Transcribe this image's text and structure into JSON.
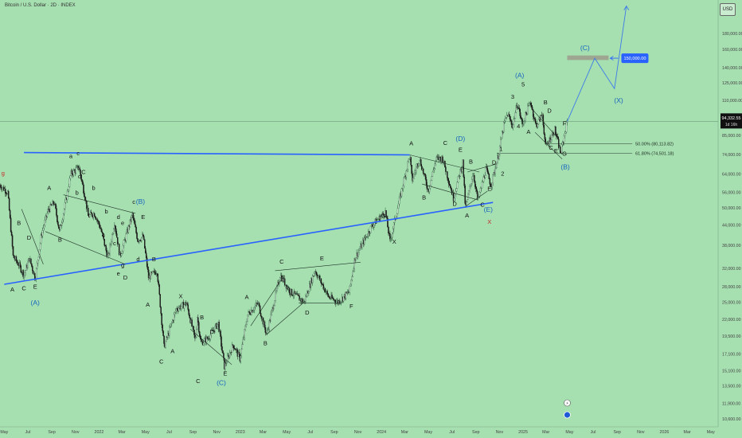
{
  "header": {
    "title": "Bitcoin / U.S. Dollar · 2D · INDEX",
    "currency": "USD"
  },
  "colors": {
    "background": "#a6dfb0",
    "up": "#2a5a3a",
    "down": "#1a1a1a",
    "trend": "#2962ff",
    "wave_label": "#111111",
    "blue_label": "#1565c0",
    "red_label": "#c62828",
    "zone": "#9c9c8c"
  },
  "chart_data": {
    "type": "candlestick",
    "scale": "log",
    "ylim": [
      10000,
      230000
    ],
    "xlim": [
      "2021-04-20",
      "2026-05-20"
    ],
    "price_ticks": [
      10600,
      11900,
      13500,
      15100,
      17100,
      19500,
      22000,
      25000,
      28000,
      32000,
      38000,
      44000,
      50000,
      56000,
      64000,
      74000,
      85000,
      110000,
      125000,
      140000,
      160000,
      180000
    ],
    "price_tick_labels": [
      "10,600.00",
      "11,900.00",
      "13,500.00",
      "15,100.00",
      "17,100.00",
      "19,500.00",
      "22,000.00",
      "25,000.00",
      "28,000.00",
      "32,000.00",
      "38,000.00",
      "44,000.00",
      "50,000.00",
      "56,000.00",
      "64,000.00",
      "74,000.00",
      "85,000.00",
      "110,000.00",
      "125,000.00",
      "140,000.00",
      "160,000.00",
      "180,000.00"
    ],
    "time_labels": [
      {
        "date": "2021-05-01",
        "label": "May"
      },
      {
        "date": "2021-07-01",
        "label": "Jul"
      },
      {
        "date": "2021-09-01",
        "label": "Sep"
      },
      {
        "date": "2021-11-01",
        "label": "Nov"
      },
      {
        "date": "2022-01-01",
        "label": "2022"
      },
      {
        "date": "2022-03-01",
        "label": "Mar"
      },
      {
        "date": "2022-05-01",
        "label": "May"
      },
      {
        "date": "2022-07-01",
        "label": "Jul"
      },
      {
        "date": "2022-09-01",
        "label": "Sep"
      },
      {
        "date": "2022-11-01",
        "label": "Nov"
      },
      {
        "date": "2023-01-01",
        "label": "2023"
      },
      {
        "date": "2023-03-01",
        "label": "Mar"
      },
      {
        "date": "2023-05-01",
        "label": "May"
      },
      {
        "date": "2023-07-01",
        "label": "Jul"
      },
      {
        "date": "2023-09-01",
        "label": "Sep"
      },
      {
        "date": "2023-11-01",
        "label": "Nov"
      },
      {
        "date": "2024-01-01",
        "label": "2024"
      },
      {
        "date": "2024-03-01",
        "label": "Mar"
      },
      {
        "date": "2024-05-01",
        "label": "May"
      },
      {
        "date": "2024-07-01",
        "label": "Jul"
      },
      {
        "date": "2024-09-01",
        "label": "Sep"
      },
      {
        "date": "2024-11-01",
        "label": "Nov"
      },
      {
        "date": "2025-01-01",
        "label": "2025"
      },
      {
        "date": "2025-03-01",
        "label": "Mar"
      },
      {
        "date": "2025-05-01",
        "label": "May"
      },
      {
        "date": "2025-07-01",
        "label": "Jul"
      },
      {
        "date": "2025-09-01",
        "label": "Sep"
      },
      {
        "date": "2025-11-01",
        "label": "Nov"
      },
      {
        "date": "2026-01-01",
        "label": "2026"
      },
      {
        "date": "2026-03-01",
        "label": "Mar"
      },
      {
        "date": "2026-05-01",
        "label": "May"
      }
    ],
    "price_path": [
      [
        "2021-04-20",
        59000
      ],
      [
        "2021-05-10",
        56000
      ],
      [
        "2021-05-24",
        35000
      ],
      [
        "2021-06-07",
        33000
      ],
      [
        "2021-06-21",
        30500
      ],
      [
        "2021-07-05",
        34500
      ],
      [
        "2021-07-20",
        29800
      ],
      [
        "2021-08-05",
        41000
      ],
      [
        "2021-08-22",
        49000
      ],
      [
        "2021-09-07",
        52000
      ],
      [
        "2021-09-21",
        42000
      ],
      [
        "2021-10-05",
        51000
      ],
      [
        "2021-10-20",
        64000
      ],
      [
        "2021-11-10",
        67500
      ],
      [
        "2021-11-26",
        54000
      ],
      [
        "2021-12-04",
        47000
      ],
      [
        "2021-12-20",
        48000
      ],
      [
        "2022-01-05",
        43000
      ],
      [
        "2022-01-24",
        34500
      ],
      [
        "2022-02-10",
        45000
      ],
      [
        "2022-02-24",
        35000
      ],
      [
        "2022-03-28",
        47500
      ],
      [
        "2022-04-11",
        39500
      ],
      [
        "2022-04-25",
        40500
      ],
      [
        "2022-05-09",
        30000
      ],
      [
        "2022-05-31",
        31500
      ],
      [
        "2022-06-18",
        18000
      ],
      [
        "2022-07-20",
        23800
      ],
      [
        "2022-08-15",
        24800
      ],
      [
        "2022-09-07",
        18800
      ],
      [
        "2022-09-12",
        22500
      ],
      [
        "2022-09-21",
        18500
      ],
      [
        "2022-10-10",
        19200
      ],
      [
        "2022-11-05",
        21400
      ],
      [
        "2022-11-21",
        15600
      ],
      [
        "2022-12-14",
        18300
      ],
      [
        "2022-12-31",
        16500
      ],
      [
        "2023-01-20",
        22800
      ],
      [
        "2023-02-16",
        24800
      ],
      [
        "2023-03-10",
        19700
      ],
      [
        "2023-04-14",
        30500
      ],
      [
        "2023-05-10",
        27000
      ],
      [
        "2023-06-15",
        25000
      ],
      [
        "2023-07-13",
        31600
      ],
      [
        "2023-08-17",
        26000
      ],
      [
        "2023-09-11",
        25000
      ],
      [
        "2023-10-10",
        27000
      ],
      [
        "2023-10-24",
        34500
      ],
      [
        "2023-12-08",
        44000
      ],
      [
        "2024-01-11",
        48500
      ],
      [
        "2024-01-23",
        39000
      ],
      [
        "2024-02-15",
        52000
      ],
      [
        "2024-03-14",
        73700
      ],
      [
        "2024-03-20",
        61000
      ],
      [
        "2024-04-08",
        72000
      ],
      [
        "2024-05-01",
        56600
      ],
      [
        "2024-05-21",
        71500
      ],
      [
        "2024-06-07",
        71900
      ],
      [
        "2024-07-05",
        53700
      ],
      [
        "2024-07-29",
        70000
      ],
      [
        "2024-08-05",
        49500
      ],
      [
        "2024-08-25",
        64900
      ],
      [
        "2024-09-06",
        52500
      ],
      [
        "2024-09-27",
        66500
      ],
      [
        "2024-10-10",
        58900
      ],
      [
        "2024-10-29",
        73500
      ],
      [
        "2024-11-13",
        93000
      ],
      [
        "2024-11-22",
        99500
      ],
      [
        "2024-12-05",
        91000
      ],
      [
        "2024-12-17",
        108000
      ],
      [
        "2024-12-30",
        92000
      ],
      [
        "2025-01-20",
        109500
      ],
      [
        "2025-02-03",
        91200
      ],
      [
        "2025-02-20",
        99000
      ],
      [
        "2025-02-28",
        78000
      ],
      [
        "2025-03-24",
        88700
      ],
      [
        "2025-04-08",
        74500
      ],
      [
        "2025-04-25",
        94300
      ]
    ],
    "last_price": 94332.55,
    "last_price_label": "94,332.55",
    "candle_timer": "1d 16h",
    "target_price_label": "150,000.00",
    "target_zone": {
      "x0": "2025-04-25",
      "x1": "2025-08-10",
      "y0": 148000,
      "y1": 153000
    },
    "fib_levels": [
      {
        "label": "50.00% (80,113.82)",
        "price": 80113.82,
        "x0": "2025-03-01",
        "x1": "2025-10-10"
      },
      {
        "label": "61.80% (74,501.18)",
        "price": 74501.18,
        "x0": "2024-10-25",
        "x1": "2025-10-10"
      }
    ],
    "trendlines": [
      {
        "pts": [
          [
            "2021-06-21",
            75000
          ],
          [
            "2024-03-14",
            73700
          ]
        ],
        "style": "trend"
      },
      {
        "pts": [
          [
            "2021-05-01",
            28500
          ],
          [
            "2024-10-15",
            52000
          ]
        ],
        "style": "trend"
      },
      {
        "pts": [
          [
            "2025-04-25",
            94300
          ],
          [
            "2025-07-05",
            150000
          ],
          [
            "2025-08-25",
            120000
          ],
          [
            "2025-09-25",
            220000
          ]
        ],
        "style": "projection"
      },
      {
        "pts": [
          [
            "2021-06-15",
            49500
          ],
          [
            "2021-08-10",
            33000
          ]
        ],
        "style": "thin"
      },
      {
        "pts": [
          [
            "2021-10-01",
            55000
          ],
          [
            "2022-04-05",
            48000
          ]
        ],
        "style": "thin"
      },
      {
        "pts": [
          [
            "2021-08-15",
            42000
          ],
          [
            "2022-03-10",
            33000
          ]
        ],
        "style": "thin"
      },
      {
        "pts": [
          [
            "2022-08-25",
            20500
          ],
          [
            "2022-12-10",
            15800
          ]
        ],
        "style": "thin"
      },
      {
        "pts": [
          [
            "2023-01-28",
            21000
          ],
          [
            "2023-04-25",
            30500
          ]
        ],
        "style": "thin"
      },
      {
        "pts": [
          [
            "2023-04-01",
            31500
          ],
          [
            "2023-11-08",
            33500
          ]
        ],
        "style": "thin"
      },
      {
        "pts": [
          [
            "2023-06-01",
            24800
          ],
          [
            "2023-09-20",
            24800
          ]
        ],
        "style": "thin"
      },
      {
        "pts": [
          [
            "2023-03-10",
            19700
          ],
          [
            "2023-06-15",
            25000
          ]
        ],
        "style": "thin"
      },
      {
        "pts": [
          [
            "2024-03-14",
            73700
          ],
          [
            "2024-09-10",
            65000
          ]
        ],
        "style": "thin"
      },
      {
        "pts": [
          [
            "2024-04-15",
            59500
          ],
          [
            "2024-09-05",
            53000
          ]
        ],
        "style": "thin"
      },
      {
        "pts": [
          [
            "2024-08-05",
            50500
          ],
          [
            "2024-10-01",
            56500
          ]
        ],
        "style": "thin"
      },
      {
        "pts": [
          [
            "2024-08-10",
            65000
          ],
          [
            "2024-10-25",
            69000
          ]
        ],
        "style": "thin"
      },
      {
        "pts": [
          [
            "2025-01-25",
            103000
          ],
          [
            "2025-04-02",
            83000
          ]
        ],
        "style": "thin"
      },
      {
        "pts": [
          [
            "2025-02-01",
            87000
          ],
          [
            "2025-04-12",
            71500
          ]
        ],
        "style": "thin"
      }
    ],
    "wave_labels": [
      {
        "t": "g",
        "d": "2021-04-28",
        "p": 63500,
        "c": "red"
      },
      {
        "t": "A",
        "d": "2021-05-22",
        "p": 27000,
        "c": "dark"
      },
      {
        "t": "B",
        "d": "2021-06-08",
        "p": 44000,
        "c": "dark"
      },
      {
        "t": "C",
        "d": "2021-06-21",
        "p": 27300,
        "c": "dark"
      },
      {
        "t": "D",
        "d": "2021-07-04",
        "p": 39500,
        "c": "dark"
      },
      {
        "t": "E",
        "d": "2021-07-20",
        "p": 27600,
        "c": "dark"
      },
      {
        "t": "(A)",
        "d": "2021-07-20",
        "p": 24500,
        "c": "blue"
      },
      {
        "t": "A",
        "d": "2021-08-25",
        "p": 57000,
        "c": "dark"
      },
      {
        "t": "B",
        "d": "2021-09-22",
        "p": 39000,
        "c": "dark"
      },
      {
        "t": "a",
        "d": "2021-10-20",
        "p": 72000,
        "c": "dark"
      },
      {
        "t": "c",
        "d": "2021-11-08",
        "p": 73500,
        "c": "dark"
      },
      {
        "t": "C",
        "d": "2021-11-22",
        "p": 64000,
        "c": "dark"
      },
      {
        "t": "b",
        "d": "2021-11-05",
        "p": 55000,
        "c": "dark"
      },
      {
        "t": "d",
        "d": "2021-11-12",
        "p": 62000,
        "c": "dark"
      },
      {
        "t": "b",
        "d": "2021-12-18",
        "p": 57000,
        "c": "dark"
      },
      {
        "t": "b",
        "d": "2022-01-20",
        "p": 48000,
        "c": "dark"
      },
      {
        "t": "a",
        "d": "2022-01-12",
        "p": 40500,
        "c": "dark"
      },
      {
        "t": "c",
        "d": "2022-02-10",
        "p": 38000,
        "c": "dark"
      },
      {
        "t": "d",
        "d": "2022-02-20",
        "p": 46000,
        "c": "dark"
      },
      {
        "t": "e",
        "d": "2022-03-03",
        "p": 44000,
        "c": "dark"
      },
      {
        "t": "e",
        "d": "2022-02-20",
        "p": 30400,
        "c": "dark"
      },
      {
        "t": "g",
        "d": "2022-03-03",
        "p": 32300,
        "c": "dark"
      },
      {
        "t": "D",
        "d": "2022-03-10",
        "p": 29500,
        "c": "dark"
      },
      {
        "t": "c",
        "d": "2022-04-01",
        "p": 51500,
        "c": "dark"
      },
      {
        "t": "(B)",
        "d": "2022-04-18",
        "p": 51500,
        "c": "blue"
      },
      {
        "t": "E",
        "d": "2022-04-25",
        "p": 46000,
        "c": "dark"
      },
      {
        "t": "d",
        "d": "2022-04-12",
        "p": 33800,
        "c": "dark"
      },
      {
        "t": "B",
        "d": "2022-05-23",
        "p": 33800,
        "c": "dark"
      },
      {
        "t": "A",
        "d": "2022-05-07",
        "p": 24200,
        "c": "dark"
      },
      {
        "t": "C",
        "d": "2022-06-11",
        "p": 15900,
        "c": "dark"
      },
      {
        "t": "X",
        "d": "2022-07-31",
        "p": 25700,
        "c": "dark"
      },
      {
        "t": "A",
        "d": "2022-07-10",
        "p": 17200,
        "c": "dark"
      },
      {
        "t": "B",
        "d": "2022-09-24",
        "p": 22000,
        "c": "dark"
      },
      {
        "t": "D",
        "d": "2022-10-20",
        "p": 19800,
        "c": "dark"
      },
      {
        "t": "C",
        "d": "2022-09-14",
        "p": 13800,
        "c": "dark"
      },
      {
        "t": "E",
        "d": "2022-11-23",
        "p": 14600,
        "c": "dark"
      },
      {
        "t": "(C)",
        "d": "2022-11-13",
        "p": 13600,
        "c": "blue"
      },
      {
        "t": "A",
        "d": "2023-01-18",
        "p": 25600,
        "c": "dark"
      },
      {
        "t": "B",
        "d": "2023-03-07",
        "p": 18200,
        "c": "dark"
      },
      {
        "t": "C",
        "d": "2023-04-18",
        "p": 33200,
        "c": "dark"
      },
      {
        "t": "D",
        "d": "2023-06-23",
        "p": 22800,
        "c": "dark"
      },
      {
        "t": "E",
        "d": "2023-07-31",
        "p": 34000,
        "c": "dark"
      },
      {
        "t": "F",
        "d": "2023-10-15",
        "p": 23900,
        "c": "dark"
      },
      {
        "t": "G",
        "d": "2024-01-06",
        "p": 46500,
        "c": "dark"
      },
      {
        "t": "X",
        "d": "2024-02-03",
        "p": 38400,
        "c": "dark"
      },
      {
        "t": "A",
        "d": "2024-03-18",
        "p": 79000,
        "c": "dark"
      },
      {
        "t": "B",
        "d": "2024-04-20",
        "p": 53200,
        "c": "dark"
      },
      {
        "t": "C",
        "d": "2024-06-14",
        "p": 79200,
        "c": "dark"
      },
      {
        "t": "(D)",
        "d": "2024-07-23",
        "p": 81600,
        "c": "blue"
      },
      {
        "t": "E",
        "d": "2024-07-23",
        "p": 75500,
        "c": "dark"
      },
      {
        "t": "D",
        "d": "2024-07-08",
        "p": 50700,
        "c": "dark"
      },
      {
        "t": "B",
        "d": "2024-08-19",
        "p": 69200,
        "c": "dark"
      },
      {
        "t": "A",
        "d": "2024-08-09",
        "p": 46600,
        "c": "dark"
      },
      {
        "t": "C",
        "d": "2024-09-18",
        "p": 50400,
        "c": "dark"
      },
      {
        "t": "E",
        "d": "2024-10-06",
        "p": 56700,
        "c": "dark"
      },
      {
        "t": "(E)",
        "d": "2024-10-03",
        "p": 48500,
        "c": "blue"
      },
      {
        "t": "X",
        "d": "2024-10-06",
        "p": 44500,
        "c": "red"
      },
      {
        "t": "D",
        "d": "2024-10-18",
        "p": 68800,
        "c": "dark"
      },
      {
        "t": "1",
        "d": "2024-11-05",
        "p": 76000,
        "c": "dark"
      },
      {
        "t": "2",
        "d": "2024-11-09",
        "p": 63400,
        "c": "dark"
      },
      {
        "t": "3",
        "d": "2024-12-05",
        "p": 111500,
        "c": "dark"
      },
      {
        "t": "4",
        "d": "2024-12-20",
        "p": 89600,
        "c": "dark"
      },
      {
        "t": "(A)",
        "d": "2024-12-23",
        "p": 130000,
        "c": "blue"
      },
      {
        "t": "5",
        "d": "2025-01-01",
        "p": 122000,
        "c": "dark"
      },
      {
        "t": "A",
        "d": "2025-01-15",
        "p": 86100,
        "c": "dark"
      },
      {
        "t": "B",
        "d": "2025-02-28",
        "p": 107000,
        "c": "dark"
      },
      {
        "t": "D",
        "d": "2025-03-10",
        "p": 100400,
        "c": "dark"
      },
      {
        "t": "F",
        "d": "2025-04-18",
        "p": 91600,
        "c": "dark"
      },
      {
        "t": "C",
        "d": "2025-03-14",
        "p": 76500,
        "c": "dark"
      },
      {
        "t": "E",
        "d": "2025-03-27",
        "p": 74900,
        "c": "dark"
      },
      {
        "t": "G",
        "d": "2025-04-18",
        "p": 73300,
        "c": "dark"
      },
      {
        "t": "(B)",
        "d": "2025-04-20",
        "p": 66300,
        "c": "blue"
      },
      {
        "t": "(C)",
        "d": "2025-06-10",
        "p": 159000,
        "c": "blue"
      },
      {
        "t": "(X)",
        "d": "2025-09-05",
        "p": 108000,
        "c": "blue"
      }
    ]
  }
}
